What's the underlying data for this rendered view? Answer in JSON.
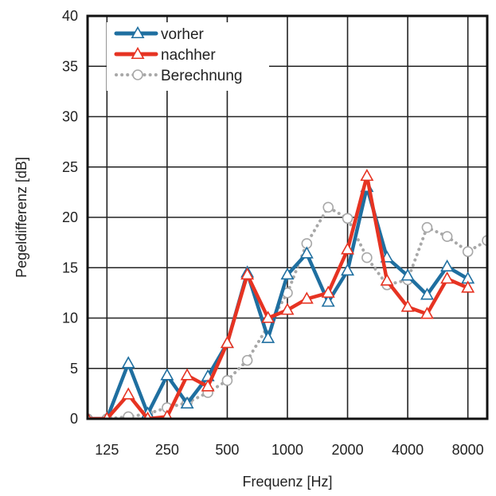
{
  "chart_data": {
    "type": "line",
    "xlabel": "Frequenz [Hz]",
    "ylabel": "Pegeldifferenz [dB]",
    "ylim": [
      0,
      40
    ],
    "yticks": [
      0,
      5,
      10,
      15,
      20,
      25,
      30,
      35,
      40
    ],
    "xlim": [
      100,
      10000
    ],
    "xscale": "log",
    "x_tick_values": [
      125,
      250,
      500,
      1000,
      2000,
      4000,
      8000
    ],
    "x_tick_labels": [
      "125",
      "250",
      "500",
      "1000",
      "2000",
      "4000",
      "8000"
    ],
    "grid": true,
    "legend_position": "top-left",
    "series": [
      {
        "name": "vorher",
        "color": "#1f6fa0",
        "style": "solid",
        "marker": "triangle",
        "x": [
          100,
          125,
          160,
          200,
          250,
          315,
          400,
          500,
          630,
          800,
          1000,
          1250,
          1600,
          2000,
          2500,
          3150,
          4000,
          5000,
          6300,
          8000
        ],
        "y": [
          0,
          0,
          5.5,
          0.5,
          4.3,
          1.5,
          4.2,
          7.5,
          14.5,
          8,
          14.3,
          16.4,
          11.6,
          14.7,
          23,
          16,
          14.2,
          12.3,
          15.1,
          13.9
        ]
      },
      {
        "name": "nachher",
        "color": "#e63322",
        "style": "solid",
        "marker": "triangle",
        "x": [
          100,
          125,
          160,
          200,
          250,
          315,
          400,
          500,
          630,
          800,
          1000,
          1250,
          1600,
          2000,
          2500,
          3150,
          4000,
          5000,
          6300,
          8000
        ],
        "y": [
          0,
          0,
          2.4,
          0,
          0.2,
          4.3,
          3.2,
          7.5,
          14.3,
          10,
          10.8,
          11.9,
          12.5,
          16.8,
          24.1,
          13.7,
          11.1,
          10.4,
          13.9,
          13
        ]
      },
      {
        "name": "Berechnung",
        "color": "#a8a8a8",
        "style": "dotted",
        "marker": "circle",
        "x": [
          100,
          125,
          160,
          200,
          250,
          315,
          400,
          500,
          630,
          800,
          1000,
          1250,
          1600,
          2000,
          2500,
          3150,
          4000,
          5000,
          6300,
          8000,
          10000
        ],
        "y": [
          0,
          0,
          0.2,
          0.5,
          1.1,
          1.6,
          2.6,
          3.8,
          5.8,
          9.2,
          12.5,
          17.4,
          21,
          19.9,
          16,
          13.3,
          13.8,
          19,
          18.1,
          16.6,
          17.7
        ]
      }
    ]
  }
}
